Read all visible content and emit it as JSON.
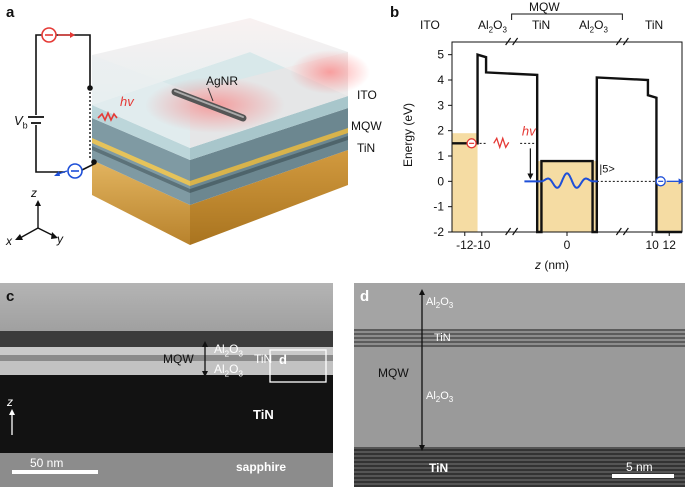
{
  "panel_labels": {
    "a": "a",
    "b": "b",
    "c": "c",
    "d": "d"
  },
  "panel_a": {
    "labels": {
      "agnr": "AgNR",
      "ito": "ITO",
      "mqw": "MQW",
      "tin": "TiN",
      "hv": "hv",
      "vb": "V",
      "vb_sub": "b"
    },
    "axes": {
      "z": "z",
      "x": "x",
      "y": "y"
    },
    "colors": {
      "gold": "#d9a94a",
      "ito": "#dbe9ec",
      "red": "#e53935",
      "blue": "#1e4fd8"
    }
  },
  "panel_b": {
    "top_labels": [
      "ITO",
      "Al2O3",
      "TiN",
      "Al2O3",
      "TiN"
    ],
    "mqw_label": "MQW",
    "hv": "hv",
    "state_label": "|5>",
    "ylabel": "Energy (eV)",
    "xlabel": "z (nm)"
  },
  "chart_data": {
    "type": "line",
    "title": "",
    "xlabel": "z (nm)",
    "ylabel": "Energy (eV)",
    "xlim": [
      -13.5,
      13.5
    ],
    "ylim": [
      -2,
      5.5
    ],
    "xticks": [
      -12,
      -10,
      0,
      10,
      12
    ],
    "xtick_labels": [
      "-12",
      "-10",
      "0",
      "10",
      "12"
    ],
    "yticks": [
      -2,
      -1,
      0,
      1,
      2,
      3,
      4,
      5
    ],
    "band_profile": {
      "x": [
        -13.5,
        -10.5,
        -10.5,
        -9.5,
        -9.5,
        -3.5,
        -3.5,
        -3,
        -3,
        3,
        3,
        3.5,
        3.5,
        9.5,
        9.5,
        10.5,
        10.5,
        13.5
      ],
      "y": [
        1.5,
        1.5,
        5.0,
        4.9,
        4.3,
        4.2,
        -2.0,
        -2.0,
        0.8,
        0.8,
        -2.0,
        -2.0,
        4.1,
        4.0,
        3.4,
        3.3,
        -2.0,
        -2.0
      ]
    },
    "filled_regions": [
      {
        "x0": -13.5,
        "x1": -10.5,
        "top": 1.9,
        "label": "ITO"
      },
      {
        "x0": -3.5,
        "x1": 3.5,
        "top": 0.8,
        "label": "TiN"
      },
      {
        "x0": 10.5,
        "x1": 13.5,
        "top": 0.0,
        "label": "TiN"
      }
    ],
    "state_level": 0.0,
    "state_label": "|5>",
    "colors": {
      "fill": "#f5dca3",
      "band": "#111111",
      "wave": "#1e4fd8",
      "electron": "#1e4fd8",
      "hv": "#e53935"
    }
  },
  "panel_c": {
    "labels": {
      "al2o3_top": "Al2O3",
      "tin_mid": "TiN",
      "al2o3_bot": "Al2O3",
      "mqw": "MQW",
      "d": "d",
      "tin": "TiN",
      "sapphire": "sapphire",
      "scale": "50 nm",
      "z": "z"
    }
  },
  "panel_d": {
    "labels": {
      "al2o3_top": "Al2O3",
      "tin_mid": "TiN",
      "mqw": "MQW",
      "al2o3_bot": "Al2O3",
      "tin_bot": "TiN",
      "scale": "5 nm"
    }
  }
}
